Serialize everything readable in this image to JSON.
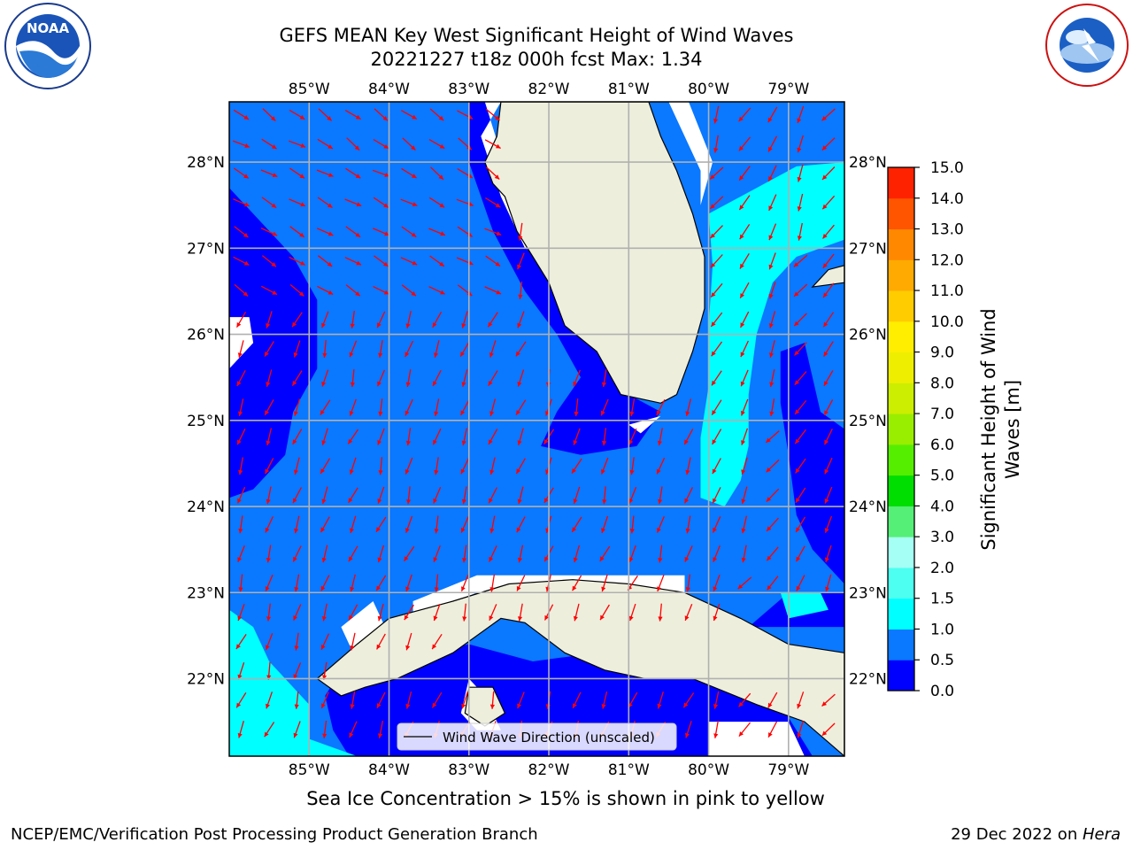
{
  "header": {
    "title_line1": "GEFS MEAN Key West Significant Height of Wind Waves",
    "title_line2": "20221227 t18z 000h fcst   Max: 1.34"
  },
  "logos": {
    "left": {
      "name": "NOAA",
      "text": "NOAA",
      "ring_text": "NATIONAL OCEANIC AND ATMOSPHERIC ADMINISTRATION · U.S. DEPARTMENT OF COMMERCE"
    },
    "right": {
      "name": "National Weather Service",
      "ring_text": "NATIONAL WEATHER SERVICE"
    }
  },
  "map": {
    "lon_labels": [
      "85°W",
      "84°W",
      "83°W",
      "82°W",
      "81°W",
      "80°W",
      "79°W"
    ],
    "lat_labels": [
      "28°N",
      "27°N",
      "26°N",
      "25°N",
      "24°N",
      "23°N",
      "22°N"
    ],
    "lon_range": [
      -86.0,
      -78.3
    ],
    "lat_range": [
      21.1,
      28.7
    ],
    "grid": true,
    "legend": {
      "label": "Wind Wave Direction (unscaled)",
      "placement": "lower-center"
    },
    "colors": {
      "band_0_0p5": "#0000ff",
      "band_0p5_1": "#0a78ff",
      "band_1_1p5": "#00ffff",
      "band_1p5_2": "#4dfff0",
      "land": "#eeeedd",
      "arrow": "#ff0000"
    }
  },
  "colorbar": {
    "label": "Significant Height of Wind Waves [m]",
    "ticks": [
      "0.0",
      "0.5",
      "1.0",
      "1.5",
      "2.0",
      "3.0",
      "4.0",
      "5.0",
      "6.0",
      "7.0",
      "8.0",
      "9.0",
      "10.0",
      "11.0",
      "12.0",
      "13.0",
      "14.0",
      "15.0"
    ],
    "colors": [
      "#0000ff",
      "#0a78ff",
      "#00ffff",
      "#4dfff0",
      "#a6fff5",
      "#55ee77",
      "#00dd00",
      "#55ee00",
      "#99ee00",
      "#ccee00",
      "#eeee00",
      "#ffee00",
      "#ffcc00",
      "#ffaa00",
      "#ff8800",
      "#ff5500",
      "#ff2200"
    ]
  },
  "footer": {
    "caption": "Sea Ice Concentration > 15% is shown in pink to yellow",
    "left": "NCEP/EMC/Verification Post Processing Product Generation Branch",
    "right_prefix": "29 Dec 2022 on ",
    "right_host": "Hera"
  }
}
